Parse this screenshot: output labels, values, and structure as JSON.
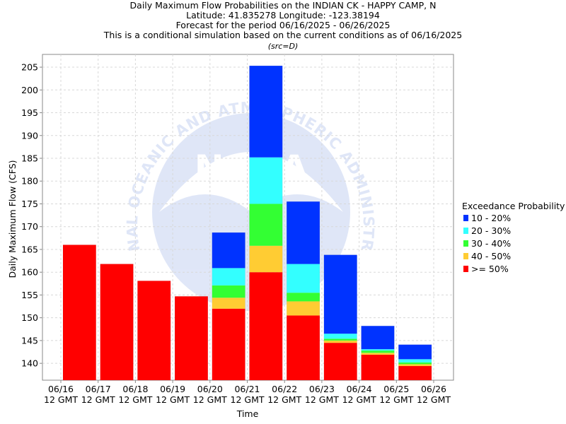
{
  "chart_data": {
    "type": "bar",
    "stacked": true,
    "title_lines": [
      "Daily Maximum Flow Probabilities on the INDIAN CK - HAPPY CAMP, N",
      "Latitude: 41.835278 Longitude: -123.38194",
      "Forecast for the period 06/16/2025 - 06/26/2025",
      "This is a conditional simulation based on the current conditions as of 06/16/2025"
    ],
    "subtitle": "(src=D)",
    "xlabel": "Time",
    "ylabel": "Daily Maximum Flow (CFS)",
    "ylim": [
      136.3,
      207.8
    ],
    "yticks": [
      140,
      145,
      150,
      155,
      160,
      165,
      170,
      175,
      180,
      185,
      190,
      195,
      200,
      205
    ],
    "xticks": [
      {
        "date": "06/16",
        "time": "12 GMT"
      },
      {
        "date": "06/17",
        "time": "12 GMT"
      },
      {
        "date": "06/18",
        "time": "12 GMT"
      },
      {
        "date": "06/19",
        "time": "12 GMT"
      },
      {
        "date": "06/20",
        "time": "12 GMT"
      },
      {
        "date": "06/21",
        "time": "12 GMT"
      },
      {
        "date": "06/22",
        "time": "12 GMT"
      },
      {
        "date": "06/23",
        "time": "12 GMT"
      },
      {
        "date": "06/24",
        "time": "12 GMT"
      },
      {
        "date": "06/25",
        "time": "12 GMT"
      },
      {
        "date": "06/26",
        "time": "12 GMT"
      }
    ],
    "grid": true,
    "legend": {
      "title": "Exceedance Probability",
      "placement": "right",
      "entries": [
        {
          "label": "10 - 20%",
          "color": "#0033ff"
        },
        {
          "label": "20 - 30%",
          "color": "#33ffff"
        },
        {
          "label": "30 - 40%",
          "color": "#33ff33"
        },
        {
          "label": "40 - 50%",
          "color": "#ffcc33"
        },
        {
          "label": ">= 50%",
          "color": "#ff0000"
        }
      ]
    },
    "days": [
      {
        "label": "06/16-06/17",
        "ge50": 166.0,
        "p40_50": 166.0,
        "p30_40": 166.0,
        "p20_30": 166.0,
        "p10_20": 166.0
      },
      {
        "label": "06/17-06/18",
        "ge50": 161.8,
        "p40_50": 161.8,
        "p30_40": 161.8,
        "p20_30": 161.8,
        "p10_20": 161.8
      },
      {
        "label": "06/18-06/19",
        "ge50": 158.1,
        "p40_50": 158.1,
        "p30_40": 158.1,
        "p20_30": 158.1,
        "p10_20": 158.1
      },
      {
        "label": "06/19-06/20",
        "ge50": 154.7,
        "p40_50": 154.7,
        "p30_40": 154.7,
        "p20_30": 154.7,
        "p10_20": 154.7
      },
      {
        "label": "06/20-06/21",
        "ge50": 152.0,
        "p40_50": 154.4,
        "p30_40": 157.1,
        "p20_30": 160.9,
        "p10_20": 168.7
      },
      {
        "label": "06/21-06/22",
        "ge50": 160.0,
        "p40_50": 165.8,
        "p30_40": 175.0,
        "p20_30": 185.2,
        "p10_20": 205.3
      },
      {
        "label": "06/22-06/23",
        "ge50": 150.5,
        "p40_50": 153.6,
        "p30_40": 155.5,
        "p20_30": 161.8,
        "p10_20": 175.5
      },
      {
        "label": "06/23-06/24",
        "ge50": 144.5,
        "p40_50": 145.0,
        "p30_40": 145.4,
        "p20_30": 146.5,
        "p10_20": 163.8
      },
      {
        "label": "06/24-06/25",
        "ge50": 141.9,
        "p40_50": 142.3,
        "p30_40": 142.8,
        "p20_30": 143.1,
        "p10_20": 148.2
      },
      {
        "label": "06/25-06/26",
        "ge50": 139.4,
        "p40_50": 139.8,
        "p30_40": 140.2,
        "p20_30": 140.9,
        "p10_20": 144.1
      }
    ]
  },
  "watermark": {
    "arc_text": "NATIONAL OCEANIC AND ATMOSPHERIC ADMINISTRATION",
    "logo_text": "NOAA"
  }
}
